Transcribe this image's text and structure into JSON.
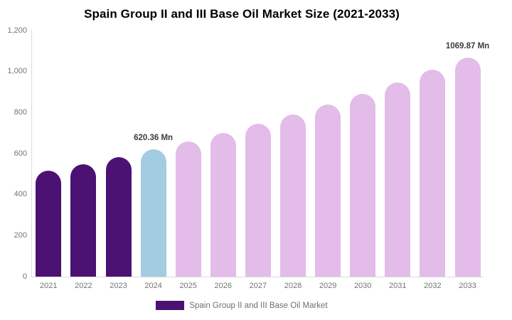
{
  "title": "Spain Group II and III Base Oil Market Size (2021-2033)",
  "chart_data": {
    "type": "bar",
    "title": "Spain Group II and III Base Oil Market Size (2021-2033)",
    "unit": "Mn",
    "xlabel": "",
    "ylabel": "",
    "ylim": [
      0,
      1200
    ],
    "ytick_step": 200,
    "ytick_labels": [
      "0",
      "200",
      "400",
      "600",
      "800",
      "1,000",
      "1,200"
    ],
    "grid": "off",
    "legend_position": "bottom",
    "categories": [
      "2021",
      "2022",
      "2023",
      "2024",
      "2025",
      "2026",
      "2027",
      "2028",
      "2029",
      "2030",
      "2031",
      "2032",
      "2033"
    ],
    "bars": [
      {
        "year": "2021",
        "value": 517,
        "segment": "historical",
        "label": ""
      },
      {
        "year": "2022",
        "value": 549,
        "segment": "historical",
        "label": ""
      },
      {
        "year": "2023",
        "value": 584,
        "segment": "historical",
        "label": ""
      },
      {
        "year": "2024",
        "value": 620.36,
        "segment": "base_year",
        "label": "620.36 Mn"
      },
      {
        "year": "2025",
        "value": 659,
        "segment": "forecast",
        "label": ""
      },
      {
        "year": "2026",
        "value": 700,
        "segment": "forecast",
        "label": ""
      },
      {
        "year": "2027",
        "value": 744,
        "segment": "forecast",
        "label": ""
      },
      {
        "year": "2028",
        "value": 791,
        "segment": "forecast",
        "label": ""
      },
      {
        "year": "2029",
        "value": 840,
        "segment": "forecast",
        "label": ""
      },
      {
        "year": "2030",
        "value": 892,
        "segment": "forecast",
        "label": ""
      },
      {
        "year": "2031",
        "value": 948,
        "segment": "forecast",
        "label": ""
      },
      {
        "year": "2032",
        "value": 1008,
        "segment": "forecast",
        "label": ""
      },
      {
        "year": "2033",
        "value": 1069.87,
        "segment": "forecast",
        "label": "1069.87 Mn"
      }
    ],
    "colors": {
      "historical": "#4b1273",
      "base_year": "#a3cbe1",
      "forecast": "#e3bce9",
      "axis_line": "#dbdbdb",
      "tick_text": "#757575",
      "annotation_text": "#3c3c3c"
    }
  },
  "legend": {
    "label": "Spain Group II and III Base Oil Market",
    "swatch_color": "#4b1273"
  }
}
